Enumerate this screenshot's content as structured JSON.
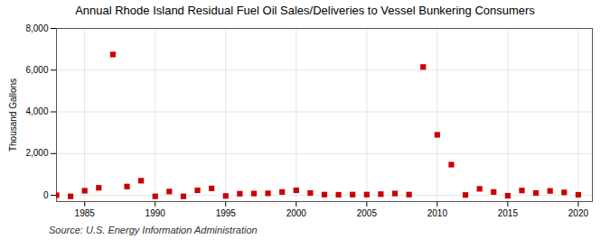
{
  "chart_data": {
    "type": "scatter",
    "title": "Annual Rhode Island Residual Fuel Oil Sales/Deliveries to Vessel Bunkering Consumers",
    "ylabel": "Thousand Gallons",
    "source": "Source: U.S. Energy Information Administration",
    "x": [
      1983,
      1984,
      1985,
      1986,
      1987,
      1988,
      1989,
      1990,
      1991,
      1992,
      1993,
      1994,
      1995,
      1996,
      1997,
      1998,
      1999,
      2000,
      2001,
      2002,
      2003,
      2004,
      2005,
      2006,
      2007,
      2008,
      2009,
      2010,
      2011,
      2012,
      2013,
      2014,
      2015,
      2016,
      2017,
      2018,
      2019,
      2020
    ],
    "values": [
      5,
      -50,
      220,
      360,
      6750,
      420,
      700,
      -50,
      180,
      -50,
      240,
      330,
      -30,
      75,
      85,
      95,
      160,
      240,
      110,
      35,
      25,
      35,
      35,
      55,
      85,
      35,
      6150,
      2900,
      1470,
      15,
      310,
      160,
      -20,
      230,
      110,
      210,
      140,
      25
    ],
    "color": "#cc0000",
    "marker": "square",
    "xlim": [
      1983,
      2021
    ],
    "xticks": [
      1985,
      1990,
      1995,
      2000,
      2005,
      2010,
      2015,
      2020
    ],
    "ylim": [
      -300,
      8000
    ],
    "yticks": [
      0,
      {
        "value": 2000,
        "label": "2,000"
      },
      {
        "value": 4000,
        "label": "4,000"
      },
      {
        "value": 6000,
        "label": "6,000"
      },
      {
        "value": 8000,
        "label": "8,000"
      }
    ],
    "grid": true
  }
}
